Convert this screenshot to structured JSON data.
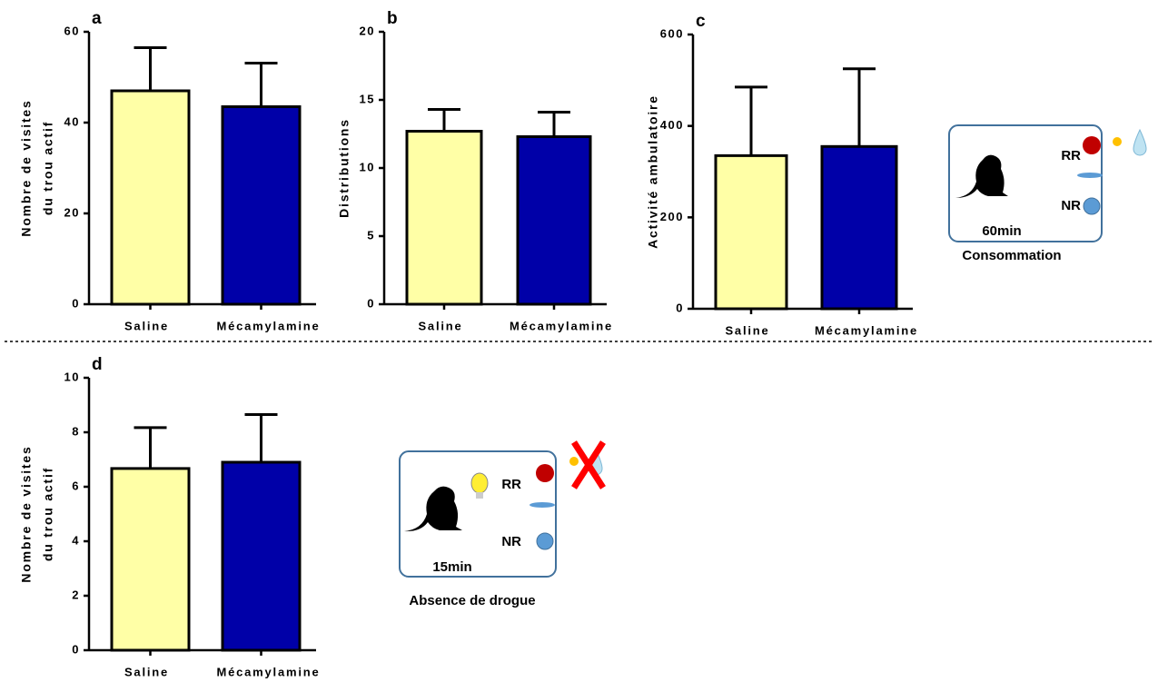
{
  "chart_data": [
    {
      "type": "bar",
      "panel": "a",
      "ylabel": [
        "Nombre de visites",
        "du trou actif"
      ],
      "categories": [
        "Saline",
        "Mécamylamine"
      ],
      "values": [
        47,
        43.5
      ],
      "errors": [
        9.5,
        9.6
      ],
      "colors": [
        "#ffffa6",
        "#0000a8"
      ],
      "ylim": [
        0,
        60
      ],
      "yticks": [
        0,
        20,
        40,
        60
      ]
    },
    {
      "type": "bar",
      "panel": "b",
      "ylabel": [
        "Distributions"
      ],
      "categories": [
        "Saline",
        "Mécamylamine"
      ],
      "values": [
        12.7,
        12.3
      ],
      "errors": [
        1.6,
        1.8
      ],
      "colors": [
        "#ffffa6",
        "#0000a8"
      ],
      "ylim": [
        0,
        20
      ],
      "yticks": [
        0,
        5,
        10,
        15,
        20
      ]
    },
    {
      "type": "bar",
      "panel": "c",
      "ylabel": [
        "Activité ambulatoire"
      ],
      "categories": [
        "Saline",
        "Mécamylamine"
      ],
      "values": [
        335,
        355
      ],
      "errors": [
        150,
        170
      ],
      "colors": [
        "#ffffa6",
        "#0000a8"
      ],
      "ylim": [
        0,
        600
      ],
      "yticks": [
        0,
        200,
        400,
        600
      ]
    },
    {
      "type": "bar",
      "panel": "d",
      "ylabel": [
        "Nombre de visites",
        "du trou actif"
      ],
      "categories": [
        "Saline",
        "Mécamylamine"
      ],
      "values": [
        6.67,
        6.9
      ],
      "errors": [
        1.5,
        1.75
      ],
      "colors": [
        "#ffffa6",
        "#0000a8"
      ],
      "ylim": [
        0,
        10
      ],
      "yticks": [
        0,
        2,
        4,
        6,
        8,
        10
      ]
    }
  ],
  "diagrams": [
    {
      "rr": "RR",
      "nr": "NR",
      "duration": "60min",
      "caption": "Consommation"
    },
    {
      "rr": "RR",
      "nr": "NR",
      "duration": "15min",
      "caption": "Absence de drogue"
    }
  ]
}
